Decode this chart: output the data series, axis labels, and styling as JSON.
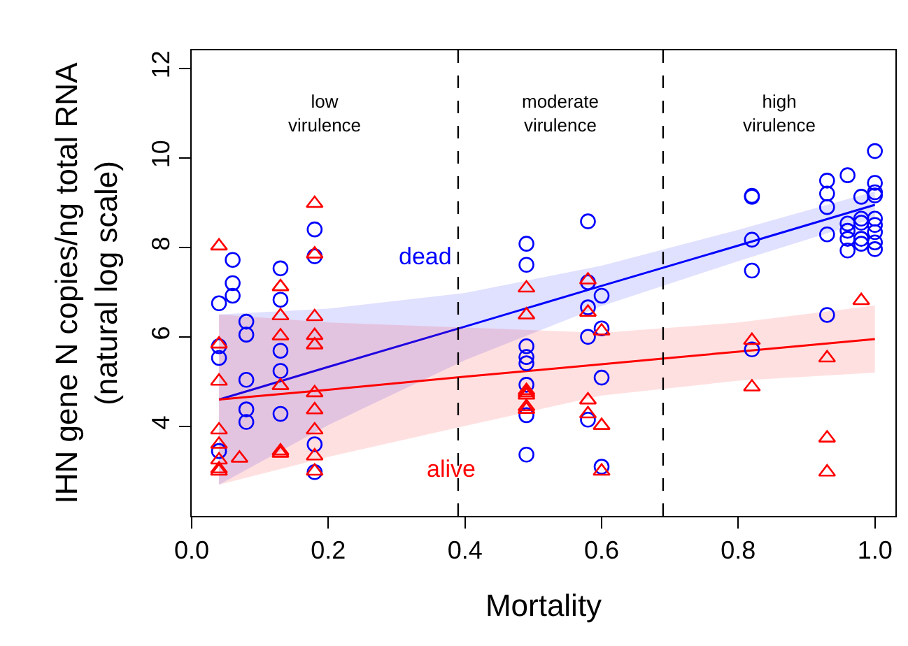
{
  "chart_data": {
    "type": "scatter",
    "xlabel": "Mortality",
    "ylabel": "IHN gene N copies/ng total RNA\n(natural log scale)",
    "xlim": [
      0,
      1.03
    ],
    "ylim": [
      2,
      12.4
    ],
    "xticks": [
      {
        "value": 0,
        "label": "0.0"
      },
      {
        "value": 0.2,
        "label": "0.2"
      },
      {
        "value": 0.4,
        "label": "0.4"
      },
      {
        "value": 0.6,
        "label": "0.6"
      },
      {
        "value": 0.8,
        "label": "0.8"
      },
      {
        "value": 1,
        "label": "1.0"
      }
    ],
    "yticks": [
      4,
      6,
      8,
      10,
      12
    ],
    "grid": false,
    "annotations": [
      "low\nvirulence",
      "moderate\nvirulence",
      "high\nvirulence"
    ],
    "ref_lines": [
      {
        "axis": "x",
        "value": 0.39,
        "color": "#000000",
        "line_style": "dashed"
      },
      {
        "axis": "x",
        "value": 0.69,
        "color": "#000000",
        "line_style": "dashed"
      }
    ],
    "series": [
      {
        "name": "dead",
        "color": "#0000ff",
        "marker": "circle",
        "x": [
          0.04,
          0.04,
          0.04,
          0.04,
          0.06,
          0.06,
          0.06,
          0.08,
          0.08,
          0.08,
          0.08,
          0.08,
          0.13,
          0.13,
          0.13,
          0.13,
          0.13,
          0.18,
          0.18,
          0.18,
          0.18,
          0.49,
          0.49,
          0.49,
          0.49,
          0.49,
          0.49,
          0.49,
          0.49,
          0.58,
          0.58,
          0.58,
          0.58,
          0.58,
          0.6,
          0.6,
          0.6,
          0.6,
          0.82,
          0.82,
          0.82,
          0.82,
          0.82,
          0.93,
          0.93,
          0.93,
          0.93,
          0.93,
          0.96,
          0.96,
          0.96,
          0.96,
          0.96,
          0.98,
          0.98,
          0.98,
          0.98,
          0.98,
          1,
          1,
          1,
          1,
          1,
          1,
          1,
          1,
          1
        ],
        "values": [
          6.75,
          5.79,
          5.53,
          3.45,
          7.72,
          7.2,
          6.92,
          6.34,
          6.05,
          5.04,
          4.38,
          4.1,
          7.53,
          6.83,
          5.69,
          5.24,
          4.28,
          8.4,
          7.8,
          3.6,
          2.98,
          8.08,
          7.61,
          5.79,
          5.55,
          5.41,
          4.93,
          4.25,
          3.37,
          8.58,
          7.22,
          6.66,
          6.0,
          4.15,
          6.92,
          6.19,
          5.09,
          3.1,
          9.13,
          9.15,
          8.17,
          7.48,
          5.72,
          9.49,
          9.2,
          8.9,
          8.29,
          6.49,
          9.61,
          8.53,
          8.37,
          8.19,
          7.93,
          9.13,
          8.64,
          8.55,
          8.19,
          8.08,
          10.15,
          9.44,
          9.23,
          9.16,
          8.64,
          8.5,
          8.34,
          8.11,
          7.96
        ]
      },
      {
        "name": "alive",
        "color": "#ff0000",
        "marker": "triangle",
        "x": [
          0.04,
          0.04,
          0.04,
          0.04,
          0.04,
          0.04,
          0.04,
          0.04,
          0.07,
          0.13,
          0.13,
          0.13,
          0.13,
          0.13,
          0.13,
          0.18,
          0.18,
          0.18,
          0.18,
          0.18,
          0.18,
          0.18,
          0.18,
          0.18,
          0.18,
          0.49,
          0.49,
          0.49,
          0.49,
          0.49,
          0.49,
          0.49,
          0.58,
          0.58,
          0.58,
          0.58,
          0.6,
          0.6,
          0.6,
          0.82,
          0.82,
          0.93,
          0.93,
          0.93,
          0.98
        ],
        "values": [
          8.03,
          5.84,
          5.01,
          3.92,
          3.6,
          3.25,
          3.05,
          3.0,
          3.29,
          7.12,
          6.47,
          6.02,
          4.91,
          3.45,
          3.4,
          8.98,
          7.85,
          6.45,
          6.03,
          5.82,
          4.75,
          4.37,
          3.92,
          3.34,
          3.0,
          7.09,
          6.49,
          4.8,
          4.75,
          4.7,
          4.44,
          4.38,
          7.27,
          6.55,
          4.59,
          4.28,
          6.13,
          4.02,
          3.0,
          5.92,
          4.88,
          5.53,
          3.74,
          2.98,
          6.81
        ]
      },
      {
        "type": "line",
        "color": "#0000ff",
        "marker": "none",
        "x": [
          0.04,
          0.2,
          0.4,
          0.6,
          0.8,
          1.0
        ],
        "values": [
          4.6,
          5.33,
          6.23,
          7.14,
          8.04,
          8.95
        ],
        "lower": [
          2.7,
          4.03,
          5.48,
          6.69,
          7.69,
          8.65
        ],
        "upper": [
          6.5,
          6.63,
          6.98,
          7.59,
          8.39,
          9.25
        ]
      },
      {
        "type": "line",
        "color": "#ff0000",
        "marker": "none",
        "x": [
          0.04,
          0.2,
          0.4,
          0.6,
          0.8,
          1.0
        ],
        "values": [
          4.6,
          4.82,
          5.11,
          5.39,
          5.67,
          5.95
        ],
        "lower": [
          2.7,
          3.32,
          4.01,
          4.69,
          5.02,
          5.2
        ],
        "upper": [
          6.5,
          6.32,
          6.21,
          6.09,
          6.32,
          6.7
        ]
      }
    ]
  }
}
